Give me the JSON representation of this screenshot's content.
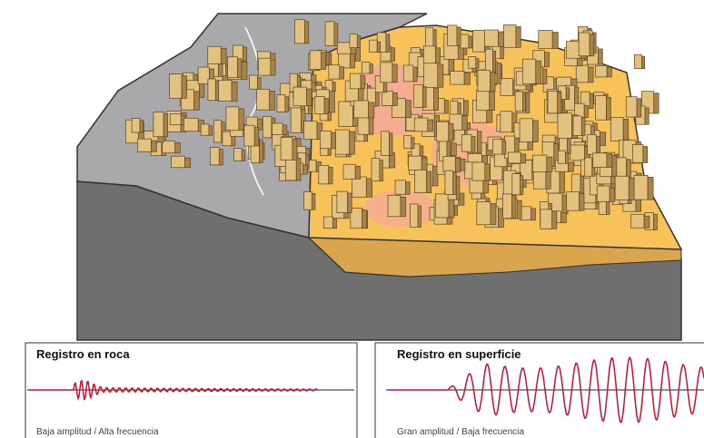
{
  "panels": [
    {
      "title": "Registro en roca",
      "caption": "Baja amplitud / Alta frecuencia"
    },
    {
      "title": "Registro en superficie",
      "caption": "Gran amplitud / Baja frecuencia"
    }
  ]
}
